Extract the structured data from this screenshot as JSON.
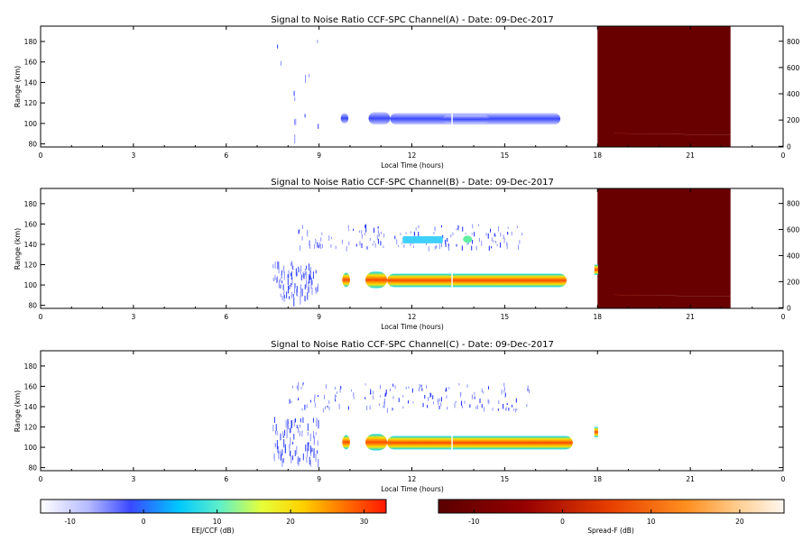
{
  "chart_data": {
    "type": "heatmap",
    "panels": [
      {
        "title": "Signal to Noise Ratio CCF-SPC Channel(A) - Date: 09-Dec-2017",
        "xlabel": "Local Time (hours)",
        "ylabel": "Range (km)",
        "xlim": [
          0,
          24
        ],
        "ylim": [
          77,
          195
        ],
        "xticks": [
          "0",
          "3",
          "6",
          "9",
          "12",
          "15",
          "18",
          "21",
          "0"
        ],
        "yticks": [
          "80",
          "100",
          "120",
          "140",
          "160",
          "180"
        ],
        "right_axis": {
          "ticks": [
            "0",
            "200",
            "400",
            "600",
            "800"
          ],
          "lim": [
            -5,
            915
          ]
        },
        "spread_f": {
          "x": [
            18.0,
            22.3
          ],
          "band_y_right": [
            85,
            100
          ]
        },
        "eej_blobs": [
          {
            "x": [
              9.7,
              9.95
            ],
            "y": [
              100,
              110
            ],
            "snr": -5
          },
          {
            "x": [
              10.6,
              11.3
            ],
            "y": [
              99,
              111
            ],
            "snr": -4
          },
          {
            "x": [
              11.3,
              16.8
            ],
            "y": [
              99,
              110
            ],
            "snr": -8
          },
          {
            "x": [
              13.0,
              14.5
            ],
            "y": [
              100,
              108
            ],
            "snr": 2
          }
        ],
        "scatter_y_range": [
          85,
          190
        ]
      },
      {
        "title": "Signal to Noise Ratio CCF-SPC Channel(B) - Date: 09-Dec-2017",
        "xlabel": "Local Time (hours)",
        "ylabel": "Range (km)",
        "xlim": [
          0,
          24
        ],
        "ylim": [
          77,
          195
        ],
        "xticks": [
          "0",
          "3",
          "6",
          "9",
          "12",
          "15",
          "18",
          "21",
          "0"
        ],
        "yticks": [
          "80",
          "100",
          "120",
          "140",
          "160",
          "180"
        ],
        "right_axis": {
          "ticks": [
            "0",
            "200",
            "400",
            "600",
            "800"
          ],
          "lim": [
            -5,
            915
          ]
        },
        "spread_f": {
          "x": [
            18.0,
            22.3
          ],
          "band_y_right": [
            85,
            100
          ]
        },
        "eej_blobs": [
          {
            "x": [
              9.75,
              10.0
            ],
            "y": [
              98,
              112
            ],
            "snr": 22
          },
          {
            "x": [
              10.5,
              11.2
            ],
            "y": [
              97,
              113
            ],
            "snr": 25
          },
          {
            "x": [
              11.2,
              17.0
            ],
            "y": [
              98,
              111
            ],
            "snr": 27
          }
        ],
        "upper_band": {
          "x": [
            8.2,
            15.6
          ],
          "y": [
            138,
            160
          ]
        },
        "scatter_y_range": [
          87,
          125
        ]
      },
      {
        "title": "Signal to Noise Ratio CCF-SPC Channel(C) - Date: 09-Dec-2017",
        "xlabel": "Local Time (hours)",
        "ylabel": "Range (km)",
        "xlim": [
          0,
          24
        ],
        "ylim": [
          77,
          195
        ],
        "xticks": [
          "0",
          "3",
          "6",
          "9",
          "12",
          "15",
          "18",
          "21",
          "0"
        ],
        "yticks": [
          "80",
          "100",
          "120",
          "140",
          "160",
          "180"
        ],
        "eej_blobs": [
          {
            "x": [
              9.75,
              10.0
            ],
            "y": [
              98,
              112
            ],
            "snr": 22
          },
          {
            "x": [
              10.5,
              11.2
            ],
            "y": [
              97,
              113
            ],
            "snr": 25
          },
          {
            "x": [
              11.2,
              17.2
            ],
            "y": [
              98,
              111
            ],
            "snr": 27
          }
        ],
        "upper_band": {
          "x": [
            8.0,
            15.8
          ],
          "y": [
            138,
            165
          ]
        },
        "scatter_y_range": [
          87,
          130
        ]
      }
    ],
    "colorbars": [
      {
        "label": "EEJ/CCF (dB)",
        "range": [
          -14,
          33
        ],
        "ticks": [
          "-10",
          "0",
          "10",
          "20",
          "30"
        ],
        "tick_values": [
          -10,
          0,
          10,
          20,
          30
        ]
      },
      {
        "label": "Spread-F (dB)",
        "range": [
          -14,
          25
        ],
        "ticks": [
          "-10",
          "0",
          "10",
          "20"
        ],
        "tick_values": [
          -10,
          0,
          10,
          20
        ]
      }
    ]
  }
}
